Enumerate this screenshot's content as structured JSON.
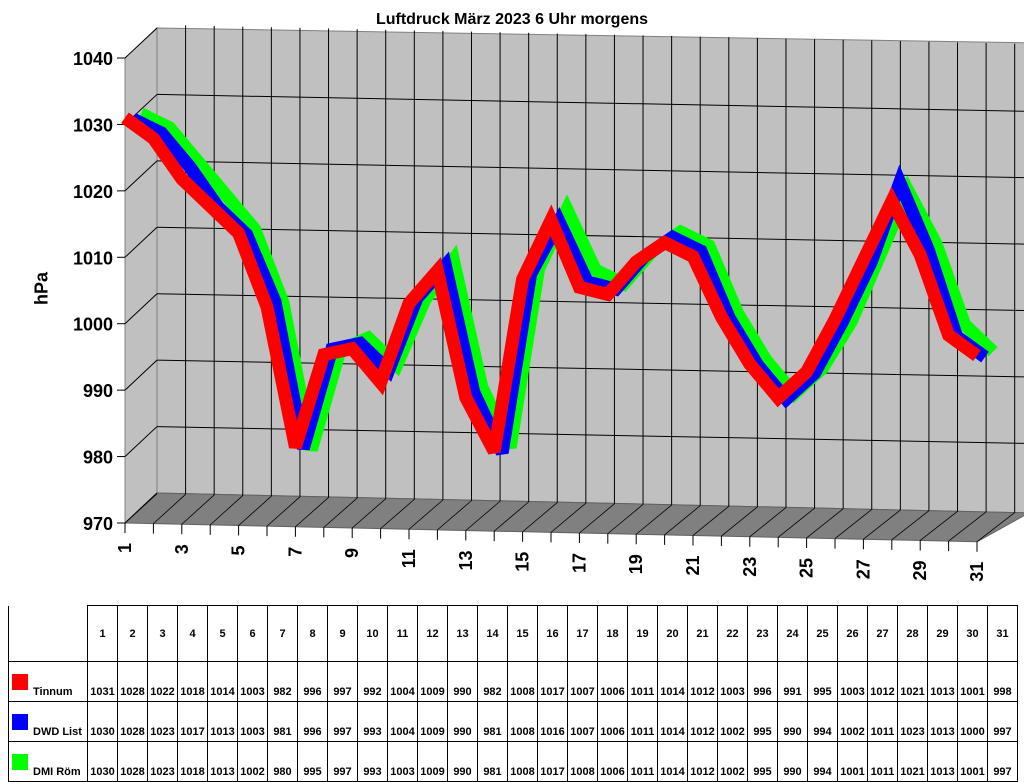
{
  "chart_data": {
    "type": "line",
    "style": "3d-ribbon",
    "title": "Luftdruck März 2023 6 Uhr morgens",
    "xlabel": "",
    "ylabel": "hPa",
    "ylim": [
      970,
      1040
    ],
    "yticks": [
      970,
      980,
      990,
      1000,
      1010,
      1020,
      1030,
      1040
    ],
    "xtick_labels": [
      "1",
      "3",
      "5",
      "7",
      "9",
      "11",
      "13",
      "15",
      "17",
      "19",
      "21",
      "23",
      "25",
      "27",
      "29",
      "31"
    ],
    "grid": true,
    "legend_position": "data-table-bottom",
    "x": [
      1,
      2,
      3,
      4,
      5,
      6,
      7,
      8,
      9,
      10,
      11,
      12,
      13,
      14,
      15,
      16,
      17,
      18,
      19,
      20,
      21,
      22,
      23,
      24,
      25,
      26,
      27,
      28,
      29,
      30,
      31
    ],
    "series": [
      {
        "name": "Tinnum",
        "color": "#ff0000",
        "values": [
          1031,
          1028,
          1022,
          1018,
          1014,
          1003,
          982,
          996,
          997,
          992,
          1004,
          1009,
          990,
          982,
          1008,
          1017,
          1007,
          1006,
          1011,
          1014,
          1012,
          1003,
          996,
          991,
          995,
          1003,
          1012,
          1021,
          1013,
          1001,
          998
        ]
      },
      {
        "name": "DWD List",
        "color": "#0000ff",
        "values": [
          1030,
          1028,
          1023,
          1017,
          1013,
          1003,
          981,
          996,
          997,
          993,
          1004,
          1009,
          990,
          981,
          1008,
          1016,
          1007,
          1006,
          1011,
          1014,
          1012,
          1002,
          995,
          990,
          994,
          1002,
          1011,
          1023,
          1013,
          1000,
          997
        ]
      },
      {
        "name": "DMI Röm",
        "color": "#00ff00",
        "values": [
          1030,
          1028,
          1023,
          1018,
          1013,
          1002,
          980,
          995,
          997,
          993,
          1003,
          1009,
          990,
          981,
          1008,
          1017,
          1008,
          1006,
          1011,
          1014,
          1012,
          1002,
          995,
          990,
          994,
          1001,
          1011,
          1021,
          1013,
          1001,
          997
        ]
      }
    ]
  },
  "colors": {
    "wall": "#c0c0c0",
    "floor": "#808080",
    "grid": "#000000"
  },
  "table": {
    "days": [
      "1",
      "2",
      "3",
      "4",
      "5",
      "6",
      "7",
      "8",
      "9",
      "10",
      "11",
      "12",
      "13",
      "14",
      "15",
      "16",
      "17",
      "18",
      "19",
      "20",
      "21",
      "22",
      "23",
      "24",
      "25",
      "26",
      "27",
      "28",
      "29",
      "30",
      "31"
    ]
  }
}
